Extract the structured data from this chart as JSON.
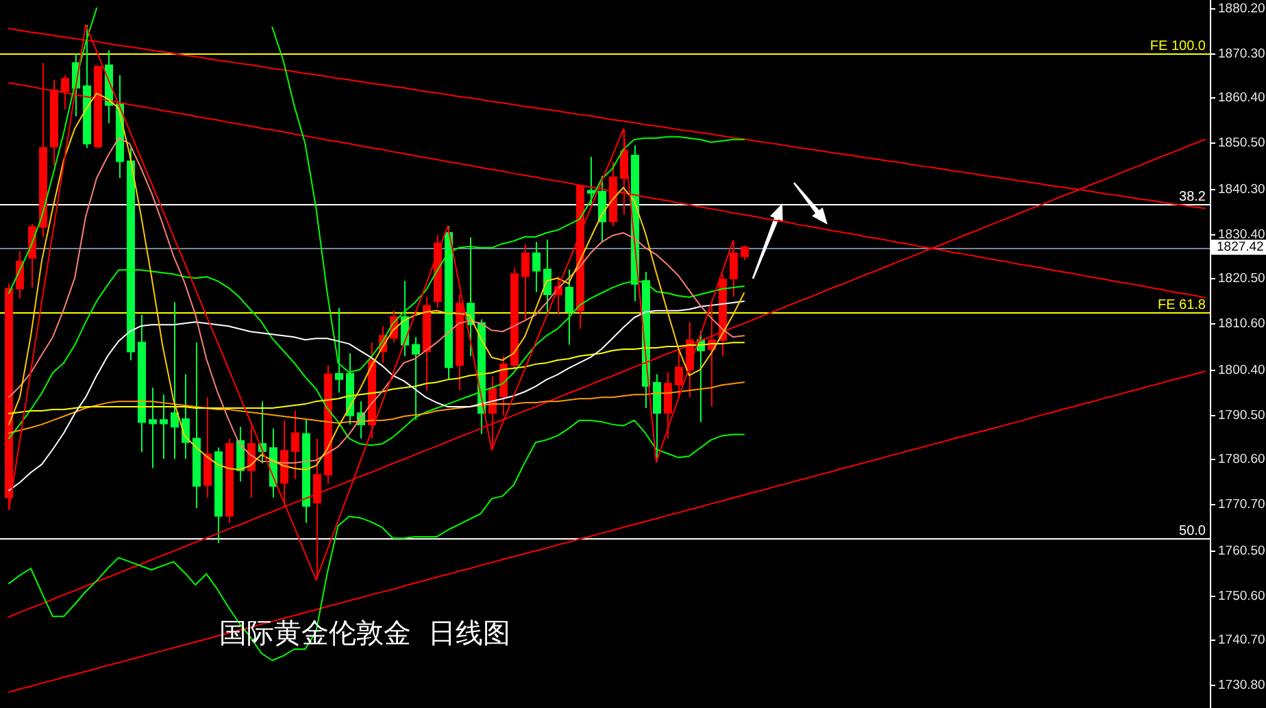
{
  "chart_data": {
    "type": "candlestick",
    "title": "国际黄金伦敦金  日线图",
    "categories": [
      null,
      null,
      null,
      null,
      null,
      null,
      null,
      null,
      null,
      null,
      null,
      null,
      null,
      null,
      null,
      null,
      null,
      null,
      null,
      null,
      null,
      null,
      null,
      null,
      null,
      null,
      null,
      null,
      null,
      null,
      null,
      null,
      null,
      null,
      null,
      null,
      null,
      null,
      null,
      null,
      null,
      null,
      null,
      null,
      null,
      null,
      null,
      null,
      null,
      null,
      null,
      null,
      null,
      null,
      null,
      null,
      null,
      null,
      null,
      null,
      null,
      null,
      null,
      null,
      null,
      null,
      null,
      null,
      null,
      null,
      null,
      null,
      null,
      null,
      null,
      null,
      null,
      null,
      null,
      null,
      null,
      null,
      null,
      null,
      null,
      null,
      null,
      null,
      null,
      null,
      null,
      null,
      null,
      null,
      null,
      null,
      null,
      null,
      null,
      null,
      null,
      null,
      null,
      null,
      null,
      null,
      null,
      null,
      null,
      null
    ],
    "ohlc": [
      [
        1772.2,
        1819.4,
        1769.5,
        1818.3
      ],
      [
        1818.3,
        1826.6,
        1816.1,
        1824.3
      ],
      [
        1825.1,
        1832.6,
        1818.5,
        1831.9
      ],
      [
        1831.9,
        1868.1,
        1829.7,
        1849.4
      ],
      [
        1849.6,
        1864.4,
        1845.5,
        1862.1
      ],
      [
        1861.8,
        1865.4,
        1857.8,
        1864.6
      ],
      [
        1868.1,
        1870.1,
        1856.3,
        1862.6
      ],
      [
        1863.0,
        1876.5,
        1849.3,
        1850.3
      ],
      [
        1849.6,
        1867.6,
        1849.3,
        1867.3
      ],
      [
        1867.6,
        1870.9,
        1854.8,
        1858.8
      ],
      [
        1859.0,
        1865.4,
        1842.7,
        1846.4
      ],
      [
        1846.4,
        1849.3,
        1802.5,
        1804.4
      ],
      [
        1806.4,
        1812.5,
        1782.2,
        1788.8
      ],
      [
        1789.3,
        1796.4,
        1778.7,
        1788.5
      ],
      [
        1789.3,
        1794.9,
        1780.7,
        1788.5
      ],
      [
        1790.8,
        1815.3,
        1780.7,
        1787.8
      ],
      [
        1789.5,
        1799.4,
        1780.7,
        1784.4
      ],
      [
        1785.2,
        1806.4,
        1769.8,
        1774.7
      ],
      [
        1774.9,
        1794.3,
        1772.2,
        1781.7
      ],
      [
        1782.2,
        1783.2,
        1762.1,
        1768.1
      ],
      [
        1768.1,
        1785.2,
        1766.6,
        1784.0
      ],
      [
        1784.7,
        1787.8,
        1775.7,
        1778.2
      ],
      [
        1778.2,
        1787.8,
        1772.1,
        1784.0
      ],
      [
        1784.0,
        1793.4,
        1779.7,
        1782.4
      ],
      [
        1783.1,
        1787.4,
        1772.2,
        1774.7
      ],
      [
        1775.4,
        1789.2,
        1770.1,
        1782.5
      ],
      [
        1782.4,
        1791.3,
        1776.2,
        1786.4
      ],
      [
        1786.2,
        1789.5,
        1766.6,
        1770.3
      ],
      [
        1771.0,
        1785.2,
        1754.0,
        1777.2
      ],
      [
        1777.2,
        1801.4,
        1775.2,
        1799.4
      ],
      [
        1799.5,
        1814.0,
        1795.3,
        1798.3
      ],
      [
        1799.5,
        1804.0,
        1788.3,
        1790.3
      ],
      [
        1790.8,
        1793.4,
        1785.2,
        1788.3
      ],
      [
        1788.3,
        1806.4,
        1785.2,
        1802.4
      ],
      [
        1804.4,
        1810.0,
        1801.9,
        1807.9
      ],
      [
        1807.4,
        1813.4,
        1806.4,
        1812.0
      ],
      [
        1812.0,
        1820.0,
        1803.4,
        1805.9
      ],
      [
        1805.9,
        1807.6,
        1789.3,
        1803.9
      ],
      [
        1804.4,
        1816.5,
        1795.8,
        1814.5
      ],
      [
        1815.5,
        1830.1,
        1814.0,
        1828.3
      ],
      [
        1830.6,
        1832.1,
        1798.3,
        1800.9
      ],
      [
        1801.4,
        1817.0,
        1795.8,
        1815.0
      ],
      [
        1815.0,
        1829.6,
        1803.4,
        1810.4
      ],
      [
        1810.7,
        1811.5,
        1786.2,
        1790.8
      ],
      [
        1790.8,
        1798.9,
        1782.7,
        1796.3
      ],
      [
        1794.5,
        1803.4,
        1790.3,
        1801.6
      ],
      [
        1801.4,
        1822.8,
        1800.4,
        1821.5
      ],
      [
        1821.0,
        1828.1,
        1811.5,
        1826.1
      ],
      [
        1826.1,
        1828.6,
        1817.5,
        1822.2
      ],
      [
        1822.5,
        1829.1,
        1812.5,
        1817.0
      ],
      [
        1817.0,
        1821.0,
        1812.5,
        1818.7
      ],
      [
        1818.5,
        1822.5,
        1805.9,
        1813.2
      ],
      [
        1813.4,
        1840.9,
        1809.4,
        1840.9
      ],
      [
        1839.9,
        1847.4,
        1836.7,
        1839.4
      ],
      [
        1839.7,
        1843.2,
        1828.6,
        1833.1
      ],
      [
        1833.1,
        1846.2,
        1832.1,
        1842.9
      ],
      [
        1842.7,
        1853.5,
        1834.6,
        1848.7
      ],
      [
        1847.7,
        1849.9,
        1815.5,
        1819.3
      ],
      [
        1820.0,
        1822.0,
        1791.9,
        1796.8
      ],
      [
        1797.5,
        1799.4,
        1780.0,
        1790.8
      ],
      [
        1790.8,
        1799.8,
        1785.2,
        1797.3
      ],
      [
        1797.1,
        1804.9,
        1794.3,
        1800.9
      ],
      [
        1800.4,
        1810.9,
        1794.3,
        1806.9
      ],
      [
        1806.9,
        1808.9,
        1788.8,
        1804.6
      ],
      [
        1804.9,
        1815.0,
        1792.3,
        1806.9
      ],
      [
        1806.9,
        1821.5,
        1803.4,
        1820.3
      ],
      [
        1820.5,
        1828.8,
        1816.5,
        1826.1
      ],
      [
        1825.4,
        1827.8,
        1824.6,
        1827.42
      ],
      null,
      null,
      null,
      null,
      null,
      null,
      null,
      null,
      null,
      null,
      null,
      null,
      null,
      null,
      null,
      null,
      null,
      null,
      null,
      null,
      null,
      null,
      null,
      null,
      null,
      null,
      null,
      null,
      null,
      null,
      null,
      null,
      null,
      null,
      null,
      null,
      null,
      null,
      null,
      null,
      null,
      null
    ],
    "colors": [
      "#ff0000",
      "#ff0000",
      "#ff0000",
      "#ff0000",
      "#ff0000",
      "#ff0000",
      "#00ff40",
      "#00ff40",
      "#ff0000",
      "#00ff40",
      "#00ff40",
      "#00ff40",
      "#00ff40",
      "#00ff40",
      "#00ff40",
      "#00ff40",
      "#00ff40",
      "#00ff40",
      "#ff0000",
      "#00ff40",
      "#ff0000",
      "#00ff40",
      "#ff0000",
      "#00ff40",
      "#00ff40",
      "#ff0000",
      "#ff0000",
      "#00ff40",
      "#ff0000",
      "#ff0000",
      "#00ff40",
      "#00ff40",
      "#00ff40",
      "#ff0000",
      "#ff0000",
      "#ff0000",
      "#00ff40",
      "#00ff40",
      "#ff0000",
      "#ff0000",
      "#00ff40",
      "#ff0000",
      "#00ff40",
      "#00ff40",
      "#ff0000",
      "#ff0000",
      "#ff0000",
      "#ff0000",
      "#00ff40",
      "#00ff40",
      "#ff0000",
      "#00ff40",
      "#ff0000",
      "#00ff40",
      "#00ff40",
      "#ff0000",
      "#ff0000",
      "#00ff40",
      "#00ff40",
      "#00ff40",
      "#ff0000",
      "#ff0000",
      "#ff0000",
      "#00ff40",
      "#ff0000",
      "#ff0000",
      "#ff0000",
      "#ff0000",
      null,
      null,
      null,
      null,
      null,
      null,
      null,
      null,
      null,
      null,
      null,
      null,
      null,
      null,
      null,
      null,
      null,
      null,
      null,
      null,
      null,
      null,
      null,
      null,
      null,
      null,
      null,
      null,
      null,
      null,
      null,
      null,
      null,
      null,
      null,
      null,
      null,
      null,
      null,
      null,
      null,
      null
    ],
    "series": [
      {
        "type": "line",
        "color": "#ff0000",
        "values": [
          1875.7,
          1875.3,
          1874.9,
          1874.6,
          1874.2,
          1873.8,
          1873.5,
          1873.1,
          1872.8,
          1872.4,
          1872.0,
          1871.7,
          1871.3,
          1870.9,
          1870.6,
          1870.2,
          1869.8,
          1869.5,
          1869.1,
          1868.7,
          1868.4,
          1868.0,
          1867.7,
          1867.3,
          1866.9,
          1866.6,
          1866.2,
          1865.8,
          1865.5,
          1865.1,
          1864.7,
          1864.4,
          1864.0,
          1863.6,
          1863.3,
          1862.9,
          1862.6,
          1862.2,
          1861.8,
          1861.5,
          1861.1,
          1860.7,
          1860.4,
          1860.0,
          1859.6,
          1859.3,
          1858.9,
          1858.5,
          1858.2,
          1857.8,
          1857.5,
          1857.1,
          1856.7,
          1856.4,
          1856.0,
          1855.6,
          1855.3,
          1854.9,
          1854.5,
          1854.2,
          1853.8,
          1853.4,
          1853.1,
          1852.7,
          1852.4,
          1852.0,
          1851.6,
          1851.3,
          1850.9,
          1850.5,
          1850.2,
          1849.8,
          1849.4,
          1849.1,
          1848.7,
          1848.3,
          1848.0,
          1847.6,
          1847.2,
          1846.9,
          1846.5,
          1846.2,
          1845.8,
          1845.4,
          1845.1,
          1844.7,
          1844.3,
          1844.0,
          1843.6,
          1843.2,
          1842.9,
          1842.5,
          1842.1,
          1841.8,
          1841.4,
          1841.0,
          1840.7,
          1840.3,
          1840.0,
          1839.6,
          1839.2,
          1838.9,
          1838.5,
          1838.1,
          1837.8,
          1837.4,
          1837.0,
          1836.7,
          1836.3,
          1836.0
        ]
      },
      {
        "type": "line",
        "color": "#ff0000",
        "values": [
          1863.7,
          1863.3,
          1862.9,
          1862.4,
          1862.0,
          1861.6,
          1861.1,
          1860.7,
          1860.3,
          1859.8,
          1859.4,
          1858.9,
          1858.5,
          1858.1,
          1857.6,
          1857.2,
          1856.8,
          1856.3,
          1855.9,
          1855.5,
          1855.0,
          1854.6,
          1854.2,
          1853.7,
          1853.3,
          1852.9,
          1852.4,
          1852.0,
          1851.6,
          1851.1,
          1850.7,
          1850.3,
          1849.8,
          1849.4,
          1849.0,
          1848.5,
          1848.1,
          1847.6,
          1847.2,
          1846.8,
          1846.3,
          1845.9,
          1845.5,
          1845.0,
          1844.6,
          1844.2,
          1843.7,
          1843.3,
          1842.9,
          1842.4,
          1842.0,
          1841.6,
          1841.1,
          1840.7,
          1840.3,
          1839.8,
          1839.4,
          1839.0,
          1838.5,
          1838.1,
          1837.7,
          1837.2,
          1836.8,
          1836.3,
          1835.9,
          1835.5,
          1835.0,
          1834.6,
          1834.2,
          1833.7,
          1833.3,
          1832.9,
          1832.4,
          1832.0,
          1831.6,
          1831.1,
          1830.7,
          1830.3,
          1829.8,
          1829.4,
          1829.0,
          1828.5,
          1828.1,
          1827.6,
          1827.2,
          1826.8,
          1826.3,
          1825.9,
          1825.5,
          1825.0,
          1824.6,
          1824.2,
          1823.7,
          1823.3,
          1822.9,
          1822.4,
          1822.0,
          1821.6,
          1821.1,
          1820.7,
          1820.3,
          1819.8,
          1819.4,
          1819.0,
          1818.5,
          1818.1,
          1817.6,
          1817.2,
          1816.8,
          1816.3
        ]
      },
      {
        "type": "line",
        "color": "#ff0000",
        "values": [
          1745.8,
          1746.8,
          1747.8,
          1748.7,
          1749.7,
          1750.7,
          1751.6,
          1752.6,
          1753.6,
          1754.5,
          1755.5,
          1756.5,
          1757.4,
          1758.4,
          1759.4,
          1760.3,
          1761.3,
          1762.3,
          1763.2,
          1764.2,
          1765.2,
          1766.1,
          1767.1,
          1768.1,
          1769.0,
          1770.0,
          1771.0,
          1771.9,
          1772.9,
          1773.9,
          1774.8,
          1775.8,
          1776.8,
          1777.7,
          1778.7,
          1779.7,
          1780.6,
          1781.6,
          1782.6,
          1783.5,
          1784.5,
          1785.5,
          1786.4,
          1787.4,
          1788.4,
          1789.3,
          1790.3,
          1791.3,
          1792.2,
          1793.2,
          1794.2,
          1795.2,
          1796.1,
          1797.1,
          1798.1,
          1799.0,
          1800.0,
          1801.0,
          1801.9,
          1802.9,
          1803.9,
          1804.8,
          1805.8,
          1806.8,
          1807.7,
          1808.7,
          1809.7,
          1810.6,
          1811.6,
          1812.6,
          1813.5,
          1814.5,
          1815.5,
          1816.4,
          1817.4,
          1818.4,
          1819.3,
          1820.3,
          1821.3,
          1822.2,
          1823.2,
          1824.2,
          1825.1,
          1826.1,
          1827.1,
          1828.0,
          1829.0,
          1830.0,
          1830.9,
          1831.9,
          1832.9,
          1833.8,
          1834.8,
          1835.8,
          1836.7,
          1837.7,
          1838.7,
          1839.6,
          1840.6,
          1841.6,
          1842.5,
          1843.5,
          1844.5,
          1845.4,
          1846.4,
          1847.4,
          1848.3,
          1849.3,
          1850.3,
          1851.2
        ]
      },
      {
        "type": "line",
        "color": "#ff0000",
        "values": [
          1729.2,
          1729.9,
          1730.5,
          1731.2,
          1731.8,
          1732.5,
          1733.1,
          1733.8,
          1734.4,
          1735.1,
          1735.7,
          1736.4,
          1737.0,
          1737.7,
          1738.3,
          1739.0,
          1739.6,
          1740.3,
          1740.9,
          1741.6,
          1742.2,
          1742.9,
          1743.5,
          1744.2,
          1744.8,
          1745.5,
          1746.1,
          1746.8,
          1747.4,
          1748.1,
          1748.7,
          1749.4,
          1750.0,
          1750.7,
          1751.3,
          1751.9,
          1752.6,
          1753.3,
          1753.9,
          1754.6,
          1755.2,
          1755.9,
          1756.5,
          1757.2,
          1757.8,
          1758.5,
          1759.1,
          1759.8,
          1760.4,
          1761.0,
          1761.7,
          1762.3,
          1763.0,
          1763.6,
          1764.3,
          1764.9,
          1765.6,
          1766.2,
          1766.9,
          1767.5,
          1768.2,
          1768.8,
          1769.5,
          1770.1,
          1770.8,
          1771.4,
          1772.1,
          1772.7,
          1773.4,
          1774.0,
          1774.7,
          1775.3,
          1776.0,
          1776.6,
          1777.3,
          1777.9,
          1778.6,
          1779.2,
          1779.9,
          1780.5,
          1781.2,
          1781.8,
          1782.5,
          1783.1,
          1783.8,
          1784.4,
          1785.1,
          1785.7,
          1786.4,
          1787.0,
          1787.6,
          1788.3,
          1788.9,
          1789.6,
          1790.3,
          1790.9,
          1791.6,
          1792.2,
          1792.9,
          1793.5,
          1794.2,
          1794.8,
          1795.5,
          1796.1,
          1796.8,
          1797.4,
          1798.1,
          1798.7,
          1799.4,
          1800.0
        ]
      },
      {
        "type": "line",
        "color": "#00ff00",
        "values": [
          1817.3,
          1822.4,
          1827.6,
          1834.2,
          1843.3,
          1852.7,
          1863.3,
          1872.6,
          1880.2,
          null,
          null,
          null,
          null,
          null,
          null,
          null,
          null,
          null,
          null,
          null,
          null,
          null,
          null,
          null,
          1876.0,
          1868.7,
          1858.7,
          1850.3,
          1836.0,
          1817.6,
          1801.9,
          1799.8,
          1800.4,
          1803.1,
          1806.4,
          1810.6,
          1813.1,
          1815.2,
          1817.9,
          1822.1,
          1826.1,
          1827.3,
          1827.6,
          1827.3,
          1827.3,
          1828.2,
          1828.8,
          1829.7,
          1829.7,
          1830.6,
          1831.2,
          1832.4,
          1833.6,
          1837.6,
          1842.4,
          1844.8,
          1849.0,
          1851.2,
          1851.5,
          1851.5,
          1851.8,
          1851.8,
          1851.5,
          1851.2,
          1850.6,
          1850.9,
          1851.2,
          1851.2,
          null,
          null,
          null,
          null,
          null,
          null,
          null,
          null,
          null,
          null,
          null,
          null,
          null,
          null,
          null,
          null,
          null,
          null,
          null,
          null,
          null,
          null,
          null,
          null,
          null,
          null,
          null,
          null,
          null,
          null,
          null,
          null,
          null,
          null,
          null,
          null,
          null,
          null,
          null,
          null,
          null,
          null
        ]
      },
      {
        "type": "line",
        "color": "#00ff00",
        "values": [
          1785.2,
          1788.3,
          1791.6,
          1795.2,
          1799.7,
          1801.9,
          1805.8,
          1810.9,
          1815.5,
          1819.1,
          1822.4,
          1822.4,
          1822.4,
          1822.1,
          1821.8,
          1821.5,
          1820.9,
          1820.6,
          1820.9,
          1820.0,
          1818.5,
          1816.4,
          1813.7,
          1811.0,
          1807.3,
          1804.6,
          1801.9,
          1798.8,
          1796.1,
          1791.9,
          1788.9,
          1785.2,
          1784.0,
          1783.7,
          1784.0,
          1785.5,
          1787.6,
          1789.8,
          1791.0,
          1791.9,
          1792.8,
          1793.7,
          1794.6,
          1795.5,
          1796.4,
          1797.3,
          1799.7,
          1802.8,
          1805.8,
          1807.9,
          1809.4,
          1811.8,
          1814.6,
          1816.1,
          1817.3,
          1818.5,
          1819.4,
          1820.0,
          1819.7,
          1817.6,
          1817.3,
          1816.7,
          1816.4,
          1817.0,
          1817.6,
          1818.2,
          1818.5,
          1818.8,
          null,
          null,
          null,
          null,
          null,
          null,
          null,
          null,
          null,
          null,
          null,
          null,
          null,
          null,
          null,
          null,
          null,
          null,
          null,
          null,
          null,
          null,
          null,
          null,
          null,
          null,
          null,
          null,
          null,
          null,
          null,
          null,
          null,
          null,
          null,
          null,
          null,
          null,
          null,
          null,
          null,
          null
        ]
      },
      {
        "type": "line",
        "color": "#00ff00",
        "values": [
          1753.2,
          1755.0,
          1756.5,
          1751.1,
          1745.9,
          1745.9,
          1748.6,
          1751.4,
          1753.8,
          1756.5,
          1758.9,
          1758.0,
          1757.1,
          1756.2,
          1757.1,
          1758.0,
          1755.6,
          1752.9,
          1755.3,
          1751.9,
          1748.0,
          1744.4,
          1741.4,
          1737.8,
          1736.2,
          1737.2,
          1738.7,
          1738.7,
          1742.6,
          1755.3,
          1765.9,
          1768.0,
          1767.7,
          1766.8,
          1765.6,
          1763.2,
          1763.2,
          1763.5,
          1763.5,
          1763.5,
          1765.0,
          1766.2,
          1767.4,
          1768.6,
          1771.9,
          1772.5,
          1774.9,
          1779.8,
          1784.3,
          1784.9,
          1785.8,
          1787.4,
          1789.2,
          1789.2,
          1788.9,
          1788.3,
          1788.0,
          1789.2,
          1786.4,
          1782.8,
          1781.9,
          1781.0,
          1781.3,
          1783.1,
          1784.9,
          1785.8,
          1786.1,
          1786.1,
          null,
          null,
          null,
          null,
          null,
          null,
          null,
          null,
          null,
          null,
          null,
          null,
          null,
          null,
          null,
          null,
          null,
          null,
          null,
          null,
          null,
          null,
          null,
          null,
          null,
          null,
          null,
          null,
          null,
          null,
          null,
          null,
          null,
          null,
          null,
          null,
          null,
          null,
          null,
          null,
          null,
          null
        ]
      },
      {
        "type": "line",
        "color": "#ff9900",
        "values": [
          1786.4,
          1787.0,
          1787.6,
          1788.3,
          1789.2,
          1790.1,
          1791.0,
          1791.9,
          1792.5,
          1793.1,
          1793.4,
          1793.4,
          1793.4,
          1793.4,
          1793.1,
          1792.8,
          1792.5,
          1792.2,
          1791.9,
          1791.6,
          1791.6,
          1791.3,
          1791.0,
          1790.7,
          1790.4,
          1790.1,
          1789.8,
          1789.5,
          1789.2,
          1788.9,
          1788.6,
          1788.9,
          1788.9,
          1789.2,
          1789.2,
          1789.5,
          1790.1,
          1790.4,
          1790.7,
          1791.3,
          1791.6,
          1791.9,
          1792.2,
          1792.5,
          1792.8,
          1792.8,
          1792.8,
          1793.1,
          1793.1,
          1793.4,
          1793.4,
          1793.7,
          1794.0,
          1794.0,
          1794.3,
          1794.3,
          1794.6,
          1794.9,
          1794.9,
          1795.2,
          1795.2,
          1795.5,
          1795.8,
          1796.1,
          1796.4,
          1797.0,
          1797.3,
          1797.6,
          null,
          null,
          null,
          null,
          null,
          null,
          null,
          null,
          null,
          null,
          null,
          null,
          null,
          null,
          null,
          null,
          null,
          null,
          null,
          null,
          null,
          null,
          null,
          null,
          null,
          null,
          null,
          null,
          null,
          null,
          null,
          null,
          null,
          null,
          null,
          null,
          null,
          null,
          null,
          null,
          null,
          null
        ]
      },
      {
        "type": "line",
        "color": "#ffff00",
        "values": [
          1790.7,
          1791.0,
          1791.3,
          1791.3,
          1791.6,
          1791.6,
          1791.9,
          1792.2,
          1792.2,
          1792.2,
          1792.2,
          1792.2,
          1792.2,
          1792.2,
          1792.2,
          1792.2,
          1792.2,
          1791.9,
          1791.9,
          1791.9,
          1791.9,
          1791.9,
          1791.9,
          1791.9,
          1791.9,
          1792.2,
          1792.5,
          1792.8,
          1793.4,
          1793.7,
          1794.0,
          1794.6,
          1794.9,
          1795.2,
          1795.5,
          1796.1,
          1796.4,
          1796.7,
          1797.3,
          1797.6,
          1798.2,
          1798.5,
          1799.1,
          1799.4,
          1799.7,
          1800.4,
          1800.7,
          1801.0,
          1801.6,
          1801.9,
          1802.5,
          1802.8,
          1803.4,
          1803.7,
          1804.0,
          1804.6,
          1804.9,
          1804.9,
          1805.2,
          1805.2,
          1805.5,
          1805.5,
          1805.8,
          1805.8,
          1806.1,
          1806.1,
          1806.4,
          1806.4,
          null,
          null,
          null,
          null,
          null,
          null,
          null,
          null,
          null,
          null,
          null,
          null,
          null,
          null,
          null,
          null,
          null,
          null,
          null,
          null,
          null,
          null,
          null,
          null,
          null,
          null,
          null,
          null,
          null,
          null,
          null,
          null,
          null,
          null,
          null,
          null,
          null,
          null,
          null,
          null,
          null,
          null
        ]
      },
      {
        "type": "line",
        "color": "#ffffff",
        "values": [
          1773.7,
          1775.5,
          1777.7,
          1779.5,
          1782.8,
          1786.4,
          1790.7,
          1794.3,
          1799.1,
          1803.4,
          1806.7,
          1808.8,
          1810.0,
          1810.3,
          1810.3,
          1810.3,
          1810.6,
          1810.9,
          1810.6,
          1810.3,
          1810.0,
          1809.4,
          1808.8,
          1808.5,
          1808.2,
          1807.9,
          1807.6,
          1807.0,
          1807.3,
          1807.3,
          1806.7,
          1806.1,
          1804.6,
          1803.1,
          1801.3,
          1799.1,
          1797.9,
          1796.1,
          1794.3,
          1793.1,
          1792.2,
          1792.2,
          1792.2,
          1792.8,
          1793.4,
          1794.0,
          1794.6,
          1795.5,
          1796.7,
          1798.2,
          1799.3,
          1800.7,
          1801.9,
          1803.1,
          1804.9,
          1807.3,
          1809.7,
          1811.9,
          1813.1,
          1813.4,
          1813.4,
          1813.4,
          1813.7,
          1814.3,
          1814.6,
          1814.9,
          1815.2,
          1815.5,
          null,
          null,
          null,
          null,
          null,
          null,
          null,
          null,
          null,
          null,
          null,
          null,
          null,
          null,
          null,
          null,
          null,
          null,
          null,
          null,
          null,
          null,
          null,
          null,
          null,
          null,
          null,
          null,
          null,
          null,
          null,
          null,
          null,
          null,
          null,
          null,
          null,
          null,
          null,
          null,
          null,
          null
        ]
      },
      {
        "type": "line",
        "color": "#fa8072",
        "values": [
          1794.3,
          1796.7,
          1799.7,
          1803.7,
          1807.6,
          1813.7,
          1820.6,
          1834.2,
          1842.7,
          1847.5,
          1851.5,
          1850.3,
          1845.1,
          1839.4,
          1832.7,
          1825.5,
          1819.7,
          1812.5,
          1802.8,
          1795.5,
          1789.5,
          1784.0,
          1781.6,
          1780.1,
          1780.1,
          1779.8,
          1779.8,
          1780.1,
          1780.4,
          1781.9,
          1783.4,
          1786.1,
          1789.5,
          1792.8,
          1795.5,
          1798.8,
          1801.9,
          1802.8,
          1804.6,
          1806.4,
          1808.5,
          1810.6,
          1811.2,
          1810.6,
          1809.1,
          1808.8,
          1810.0,
          1811.2,
          1812.5,
          1815.2,
          1818.2,
          1820.6,
          1823.0,
          1826.1,
          1828.5,
          1830.0,
          1830.6,
          1829.4,
          1827.3,
          1825.8,
          1823.6,
          1821.2,
          1817.9,
          1814.6,
          1811.8,
          1809.4,
          1807.6,
          1807.9,
          null,
          null,
          null,
          null,
          null,
          null,
          null,
          null,
          null,
          null,
          null,
          null,
          null,
          null,
          null,
          null,
          null,
          null,
          null,
          null,
          null,
          null,
          null,
          null,
          null,
          null,
          null,
          null,
          null,
          null,
          null,
          null,
          null,
          null,
          null,
          null,
          null,
          null,
          null,
          null,
          null,
          null
        ]
      },
      {
        "type": "line",
        "color": "#ffcc00",
        "values": [
          1788.3,
          1794.3,
          1807.9,
          1824.5,
          1836.0,
          1846.7,
          1853.6,
          1857.8,
          1861.4,
          1860.2,
          1858.1,
          1848.0,
          1835.0,
          1820.9,
          1805.8,
          1793.7,
          1785.8,
          1783.4,
          1781.3,
          1779.5,
          1778.6,
          1778.3,
          1779.2,
          1781.6,
          1780.4,
          1779.2,
          1778.6,
          1778.3,
          1779.2,
          1782.8,
          1787.7,
          1791.9,
          1796.1,
          1801.0,
          1805.2,
          1809.1,
          1811.2,
          1812.4,
          1813.1,
          1813.4,
          1812.8,
          1812.8,
          1812.4,
          1807.3,
          1803.1,
          1802.5,
          1804.0,
          1807.6,
          1813.7,
          1820.0,
          1820.6,
          1819.4,
          1824.2,
          1829.4,
          1834.5,
          1837.9,
          1840.6,
          1837.6,
          1830.6,
          1821.8,
          1813.4,
          1805.2,
          1799.1,
          1800.4,
          1804.0,
          1808.2,
          1812.5,
          1817.3,
          null,
          null,
          null,
          null,
          null,
          null,
          null,
          null,
          null,
          null,
          null,
          null,
          null,
          null,
          null,
          null,
          null,
          null,
          null,
          null,
          null,
          null,
          null,
          null,
          null,
          null,
          null,
          null,
          null,
          null,
          null,
          null,
          null,
          null,
          null,
          null,
          null,
          null,
          null,
          null,
          null,
          null
        ]
      },
      {
        "type": "line",
        "color": "#ff0000",
        "values": [
          1769.5,
          1784.8,
          1800.1,
          1815.4,
          1830.6,
          1845.9,
          1861.2,
          1876.5,
          1870.7,
          1864.8,
          1859.0,
          1853.2,
          1847.3,
          1841.5,
          1835.7,
          1829.8,
          1824.0,
          1818.2,
          1812.3,
          1806.5,
          1800.7,
          1794.8,
          1789.0,
          1783.2,
          1777.3,
          1771.5,
          1765.7,
          1759.8,
          1754.0,
          1760.5,
          1767.0,
          1773.5,
          1780.0,
          1786.5,
          1793.0,
          1799.6,
          1806.1,
          1812.6,
          1819.1,
          1825.6,
          1832.1,
          1819.8,
          1807.4,
          1795.1,
          1782.7,
          1788.6,
          1794.5,
          1800.4,
          1806.3,
          1812.2,
          1818.2,
          1824.1,
          1830.0,
          1835.9,
          1841.8,
          1847.6,
          1853.5,
          1829.0,
          1804.5,
          1780.0,
          1787.0,
          1793.9,
          1800.9,
          1807.9,
          1814.9,
          1821.9,
          1828.8,
          null,
          null,
          null,
          null,
          null,
          null,
          null,
          null,
          null,
          null,
          null,
          null,
          null,
          null,
          null,
          null,
          null,
          null,
          null,
          null,
          null,
          null,
          null,
          null,
          null,
          null,
          null,
          null,
          null,
          null,
          null,
          null,
          null,
          null,
          null,
          null,
          null,
          null,
          null,
          null,
          null,
          null,
          null
        ]
      }
    ],
    "ylim": [
      1725.7,
      1882.0
    ],
    "yticks": [
      {
        "value": 1880.2,
        "label": "1880.20"
      },
      {
        "value": 1870.3,
        "label": "1870.30"
      },
      {
        "value": 1860.4,
        "label": "1860.40"
      },
      {
        "value": 1850.5,
        "label": "1850.50"
      },
      {
        "value": 1840.3,
        "label": "1840.30"
      },
      {
        "value": 1830.4,
        "label": "1830.40"
      },
      {
        "value": 1820.5,
        "label": "1820.50"
      },
      {
        "value": 1810.6,
        "label": "1810.60"
      },
      {
        "value": 1800.4,
        "label": "1800.40"
      },
      {
        "value": 1790.5,
        "label": "1790.50"
      },
      {
        "value": 1780.6,
        "label": "1780.60"
      },
      {
        "value": 1770.7,
        "label": "1770.70"
      },
      {
        "value": 1760.5,
        "label": "1760.50"
      },
      {
        "value": 1750.6,
        "label": "1750.60"
      },
      {
        "value": 1740.7,
        "label": "1740.70"
      },
      {
        "value": 1730.8,
        "label": "1730.80"
      }
    ],
    "tick_labels": "y",
    "ref_lines": [
      {
        "axis": "y",
        "value": 1870.1,
        "color": "#ffff00"
      },
      {
        "axis": "y",
        "value": 1836.9,
        "color": "#ffffff"
      },
      {
        "axis": "y",
        "value": 1827.42,
        "label": "1827.42",
        "color": "#778899"
      },
      {
        "axis": "y",
        "value": 1813.2,
        "color": "#ffff00"
      },
      {
        "axis": "y",
        "value": 1763.1,
        "color": "#ffffff"
      }
    ],
    "annotations": [
      {
        "text": "FE 100.0",
        "y": 1870.1
      },
      {
        "text": "38.2",
        "y": 1836.9
      },
      {
        "text": "FE 61.8",
        "y": 1813.2
      },
      {
        "text": "50.0",
        "y": 1763.1
      }
    ]
  }
}
